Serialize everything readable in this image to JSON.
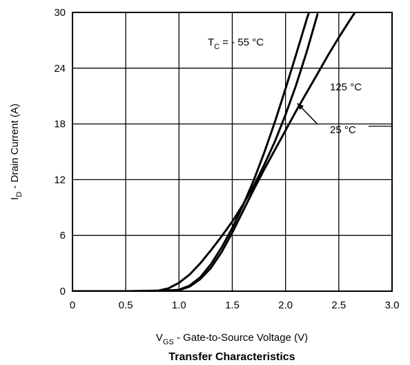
{
  "chart_data": {
    "type": "line",
    "title": "Transfer Characteristics",
    "xlabel": {
      "main": "V",
      "sub": "GS",
      "rest": " - Gate-to-Source Voltage (V)"
    },
    "ylabel": {
      "main": "I",
      "sub": "D",
      "rest": " - Drain Current (A)"
    },
    "xlim": [
      0,
      3.0
    ],
    "ylim": [
      0,
      30
    ],
    "x_ticks": [
      "0",
      "0.5",
      "1.0",
      "1.5",
      "2.0",
      "2.5",
      "3.0"
    ],
    "y_ticks": [
      "0",
      "6",
      "12",
      "18",
      "24",
      "30"
    ],
    "grid": true,
    "series": [
      {
        "name": "- 55 °C",
        "x": [
          0,
          0.5,
          0.8,
          0.9,
          1.0,
          1.1,
          1.2,
          1.3,
          1.4,
          1.5,
          1.6,
          1.7,
          1.8,
          1.9,
          2.0,
          2.1,
          2.2,
          2.3
        ],
        "y": [
          0,
          0,
          0.05,
          0.3,
          0.9,
          1.8,
          3.0,
          4.4,
          5.9,
          7.5,
          9.3,
          11.3,
          13.6,
          16.1,
          19.0,
          22.2,
          25.8,
          29.8
        ]
      },
      {
        "name": "25 °C",
        "x": [
          0,
          0.8,
          1.0,
          1.1,
          1.2,
          1.3,
          1.4,
          1.5,
          1.6,
          1.7,
          1.8,
          1.9,
          2.0,
          2.1,
          2.2,
          2.25
        ],
        "y": [
          0,
          0,
          0.15,
          0.6,
          1.5,
          2.9,
          4.7,
          6.8,
          9.2,
          11.9,
          14.9,
          18.2,
          21.8,
          25.5,
          29.3,
          31.0
        ]
      },
      {
        "name": "125 °C",
        "x": [
          0,
          0.9,
          1.0,
          1.1,
          1.2,
          1.3,
          1.4,
          1.5,
          1.6,
          1.7,
          1.8,
          1.9,
          2.0,
          2.1,
          2.2,
          2.3,
          2.4,
          2.5,
          2.6,
          2.68
        ],
        "y": [
          0,
          0,
          0.1,
          0.5,
          1.3,
          2.5,
          4.2,
          6.3,
          8.6,
          10.9,
          13.1,
          15.2,
          17.3,
          19.4,
          21.4,
          23.4,
          25.4,
          27.3,
          29.1,
          30.5
        ]
      }
    ],
    "annotations": {
      "tc_label": {
        "main": "T",
        "sub": "C",
        "rest": " = - 55 °C"
      },
      "label_125": "125 °C",
      "label_25": "25 °C"
    }
  }
}
